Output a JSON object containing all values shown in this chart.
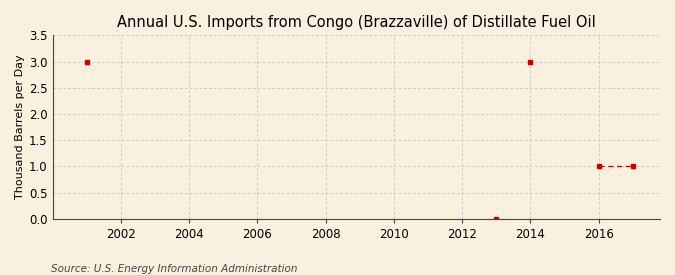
{
  "title": "Annual U.S. Imports from Congo (Brazzaville) of Distillate Fuel Oil",
  "ylabel": "Thousand Barrels per Day",
  "source": "Source: U.S. Energy Information Administration",
  "background_color": "#faf0e0",
  "plot_bg_color": "#faf0e0",
  "line_color": "#cc0000",
  "marker_color": "#cc0000",
  "data_points": [
    {
      "year": 2001,
      "value": 3.0,
      "connect_next": false
    },
    {
      "year": 2013,
      "value": 0.0,
      "connect_next": false
    },
    {
      "year": 2014,
      "value": 3.0,
      "connect_next": false
    },
    {
      "year": 2016,
      "value": 1.0,
      "connect_next": true
    },
    {
      "year": 2017,
      "value": 1.0,
      "connect_next": false
    }
  ],
  "xlim": [
    2000,
    2017.8
  ],
  "ylim": [
    0.0,
    3.5
  ],
  "yticks": [
    0.0,
    0.5,
    1.0,
    1.5,
    2.0,
    2.5,
    3.0,
    3.5
  ],
  "xticks": [
    2002,
    2004,
    2006,
    2008,
    2010,
    2012,
    2014,
    2016
  ],
  "grid_color": "#bbbbbb",
  "title_fontsize": 10.5,
  "label_fontsize": 8,
  "tick_fontsize": 8.5,
  "source_fontsize": 7.5
}
